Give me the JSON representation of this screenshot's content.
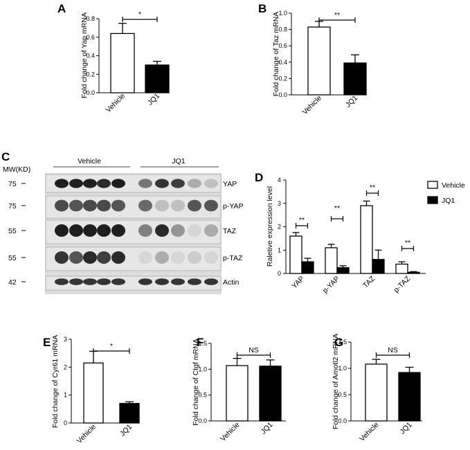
{
  "panels": {
    "A": "A",
    "B": "B",
    "C": "C",
    "D": "D",
    "E": "E",
    "F": "F",
    "G": "G"
  },
  "chart_data": [
    {
      "id": "A",
      "type": "bar",
      "categories": [
        "Vehicle",
        "JQ1"
      ],
      "values": [
        0.64,
        0.3
      ],
      "errors": [
        0.11,
        0.04
      ],
      "fills": [
        "#ffffff",
        "#000000"
      ],
      "ylabel": "Fold change of Yap mRNA",
      "ylim": [
        0,
        0.8
      ],
      "yticks": [
        "0.0",
        "0.2",
        "0.4",
        "0.6",
        "0.8"
      ],
      "sig": "*"
    },
    {
      "id": "B",
      "type": "bar",
      "categories": [
        "Vehicle",
        "JQ1"
      ],
      "values": [
        0.83,
        0.39
      ],
      "errors": [
        0.07,
        0.1
      ],
      "fills": [
        "#ffffff",
        "#000000"
      ],
      "ylabel": "Fold change of Taz mRNA",
      "ylim": [
        0,
        1.0
      ],
      "yticks": [
        "0.0",
        "0.2",
        "0.4",
        "0.6",
        "0.8",
        "1.0"
      ],
      "sig": "**"
    },
    {
      "id": "D",
      "type": "bar",
      "categories": [
        "YAP",
        "p-YAP",
        "TAZ",
        "p-TAZ"
      ],
      "series": [
        {
          "name": "Vehicle",
          "values": [
            1.6,
            1.1,
            2.9,
            0.4
          ],
          "errors": [
            0.15,
            0.15,
            0.2,
            0.1
          ],
          "fill": "#ffffff"
        },
        {
          "name": "JQ1",
          "values": [
            0.5,
            0.25,
            0.6,
            0.05
          ],
          "errors": [
            0.15,
            0.08,
            0.4,
            0.03
          ],
          "fill": "#000000"
        }
      ],
      "ylabel": "Raletive expression level",
      "ylim": [
        0,
        4
      ],
      "yticks": [
        "0",
        "1",
        "2",
        "3",
        "4"
      ],
      "sig": [
        "**",
        "**",
        "**",
        "**"
      ],
      "legend": "top-right"
    },
    {
      "id": "E",
      "type": "bar",
      "categories": [
        "Vehicle",
        "JQ1"
      ],
      "values": [
        2.15,
        0.7
      ],
      "errors": [
        0.42,
        0.06
      ],
      "fills": [
        "#ffffff",
        "#000000"
      ],
      "ylabel": "Fold change of Cyr61 mRNA",
      "ylim": [
        0,
        3
      ],
      "yticks": [
        "0",
        "1",
        "2",
        "3"
      ],
      "sig": "*"
    },
    {
      "id": "F",
      "type": "bar",
      "categories": [
        "Vehicle",
        "JQ1"
      ],
      "values": [
        1.07,
        1.06
      ],
      "errors": [
        0.14,
        0.12
      ],
      "fills": [
        "#ffffff",
        "#000000"
      ],
      "ylabel": "Fold change of Ctgf mRNA",
      "ylim": [
        0,
        1.5
      ],
      "yticks": [
        "0.0",
        "0.5",
        "1.0",
        "1.5"
      ],
      "sig": "NS"
    },
    {
      "id": "G",
      "type": "bar",
      "categories": [
        "Vehicle",
        "JQ1"
      ],
      "values": [
        1.08,
        0.92
      ],
      "errors": [
        0.09,
        0.1
      ],
      "fills": [
        "#ffffff",
        "#000000"
      ],
      "ylabel": "Fold change of Amotl2 mRNA",
      "ylim": [
        0,
        1.5
      ],
      "yticks": [
        "0.0",
        "0.5",
        "1.0",
        "1.5"
      ],
      "sig": "NS"
    }
  ],
  "western_blot": {
    "mw_label": "MW(KD)",
    "groups": [
      "Vehicle",
      "JQ1"
    ],
    "rows": [
      {
        "mw": "75",
        "protein": "YAP"
      },
      {
        "mw": "75",
        "protein": "p-YAP"
      },
      {
        "mw": "55",
        "protein": "TAZ"
      },
      {
        "mw": "55",
        "protein": "p-TAZ"
      },
      {
        "mw": "42",
        "protein": "Actin"
      }
    ]
  }
}
